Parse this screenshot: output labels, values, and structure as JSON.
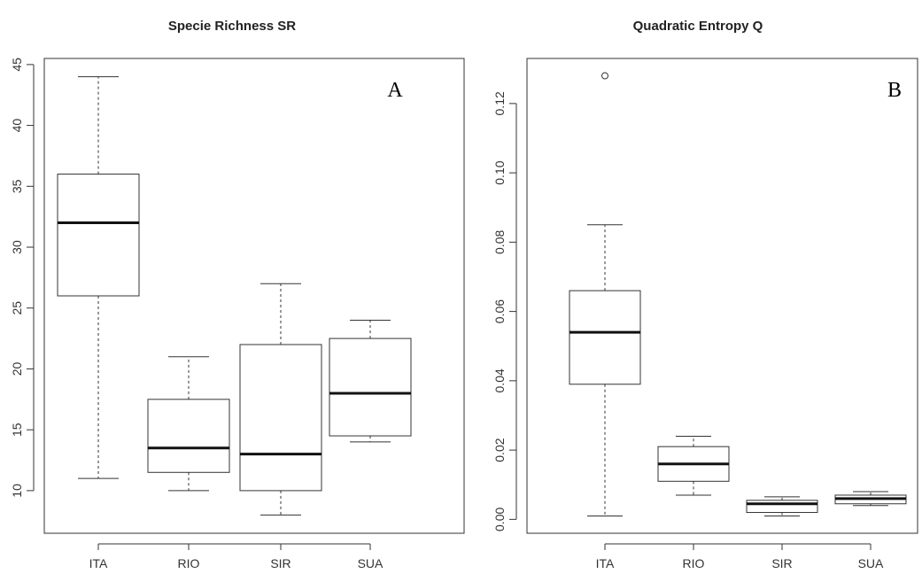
{
  "chart_data": [
    {
      "type": "boxplot",
      "title": "Specie Richness SR",
      "panel_label": "A",
      "categories": [
        "ITA",
        "RIO",
        "SIR",
        "SUA"
      ],
      "boxes": [
        {
          "category": "ITA",
          "whisker_low": 11,
          "q1": 26,
          "median": 32,
          "q3": 36,
          "whisker_high": 44,
          "outliers": []
        },
        {
          "category": "RIO",
          "whisker_low": 10,
          "q1": 11.5,
          "median": 13.5,
          "q3": 17.5,
          "whisker_high": 21,
          "outliers": []
        },
        {
          "category": "SIR",
          "whisker_low": 8,
          "q1": 10,
          "median": 13,
          "q3": 22,
          "whisker_high": 27,
          "outliers": []
        },
        {
          "category": "SUA",
          "whisker_low": 14,
          "q1": 14.5,
          "median": 18,
          "q3": 22.5,
          "whisker_high": 24,
          "outliers": []
        }
      ],
      "yticks": [
        "10",
        "15",
        "20",
        "25",
        "30",
        "35",
        "40",
        "45"
      ],
      "ylim": [
        6.5,
        45.5
      ],
      "xlabel": "",
      "ylabel": ""
    },
    {
      "type": "boxplot",
      "title": "Quadratic Entropy Q",
      "panel_label": "B",
      "categories": [
        "ITA",
        "RIO",
        "SIR",
        "SUA"
      ],
      "boxes": [
        {
          "category": "ITA",
          "whisker_low": 0.001,
          "q1": 0.039,
          "median": 0.054,
          "q3": 0.066,
          "whisker_high": 0.085,
          "outliers": [
            0.128
          ]
        },
        {
          "category": "RIO",
          "whisker_low": 0.007,
          "q1": 0.011,
          "median": 0.016,
          "q3": 0.021,
          "whisker_high": 0.024,
          "outliers": []
        },
        {
          "category": "SIR",
          "whisker_low": 0.001,
          "q1": 0.002,
          "median": 0.0045,
          "q3": 0.0055,
          "whisker_high": 0.0065,
          "outliers": []
        },
        {
          "category": "SUA",
          "whisker_low": 0.004,
          "q1": 0.0045,
          "median": 0.006,
          "q3": 0.007,
          "whisker_high": 0.008,
          "outliers": []
        }
      ],
      "yticks": [
        "0.00",
        "0.02",
        "0.04",
        "0.06",
        "0.08",
        "0.10",
        "0.12"
      ],
      "ylim": [
        -0.004,
        0.133
      ],
      "xlabel": "",
      "ylabel": ""
    }
  ]
}
